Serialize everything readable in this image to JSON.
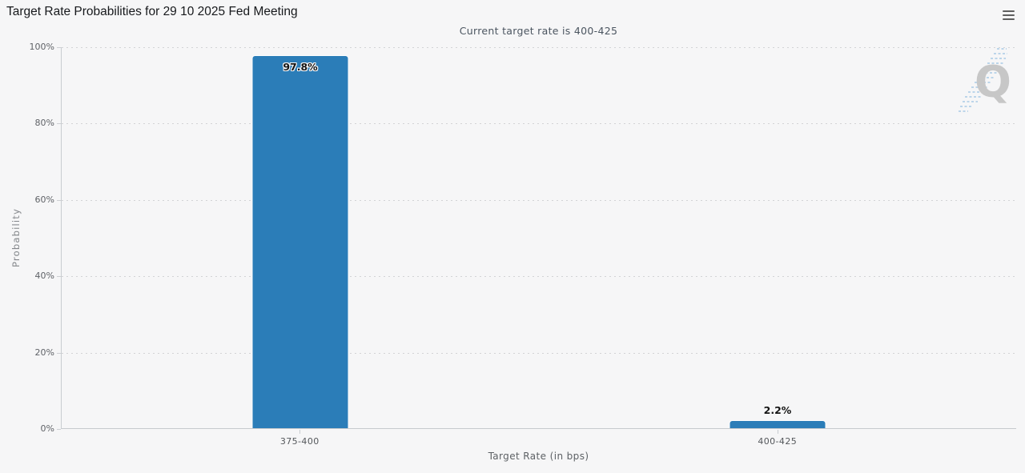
{
  "chart_data": {
    "type": "bar",
    "title": "Target Rate Probabilities for 29 10 2025 Fed Meeting",
    "subtitle": "Current target rate is 400-425",
    "categories": [
      "375-400",
      "400-425"
    ],
    "values": [
      97.8,
      2.2
    ],
    "value_labels": [
      "97.8%",
      "2.2%"
    ],
    "xlabel": "Target Rate (in bps)",
    "ylabel": "Probability",
    "ylim": [
      0,
      100
    ],
    "ytick_labels": [
      "0%",
      "20%",
      "40%",
      "60%",
      "80%",
      "100%"
    ],
    "grid": true,
    "gridline_style": "dotted",
    "legend": "none",
    "bar_color": "#2b7db8",
    "background_color": "#f6f6f7"
  },
  "icons": {
    "menu": "hamburger-menu-icon",
    "watermark_letter": "Q"
  }
}
